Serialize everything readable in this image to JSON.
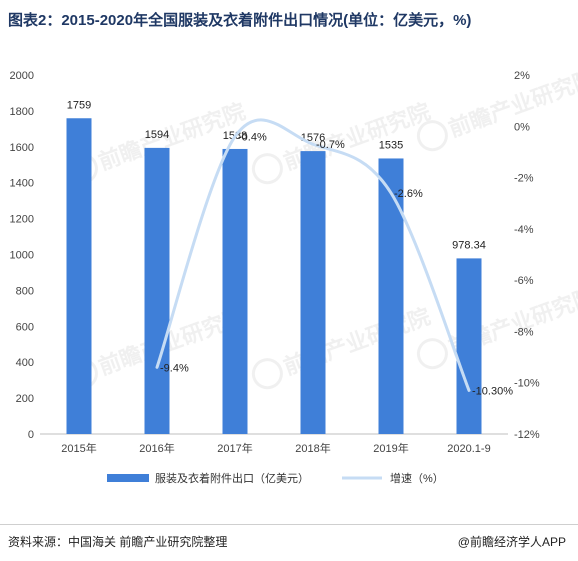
{
  "title": "图表2：2015-2020年全国服装及衣着附件出口情况(单位：亿美元，%)",
  "footer": {
    "source": "资料来源：中国海关 前瞻产业研究院整理",
    "brand": "@前瞻经济学人APP"
  },
  "watermark": "前瞻产业研究院",
  "colors": {
    "bar": "#3f7fd8",
    "line": "#c6dcf4",
    "axis": "#bfbfbf"
  },
  "chart_data": {
    "type": "bar",
    "categories": [
      "2015年",
      "2016年",
      "2017年",
      "2018年",
      "2019年",
      "2020.1-9"
    ],
    "series": [
      {
        "name": "服装及衣着附件出口（亿美元）",
        "type": "bar",
        "axis": "left",
        "values": [
          1759,
          1594,
          1588,
          1576,
          1535,
          978.34
        ],
        "labels": [
          "1759",
          "1594",
          "1588",
          "1576",
          "1535",
          "978.34"
        ]
      },
      {
        "name": "增速（%）",
        "type": "line",
        "axis": "right",
        "values": [
          null,
          -9.4,
          -0.4,
          -0.7,
          -2.6,
          -10.3
        ],
        "labels": [
          "",
          "-9.4%",
          "-0.4%",
          "-0.7%",
          "-2.6%",
          "-10.30%"
        ]
      }
    ],
    "y_left": {
      "min": 0,
      "max": 2000,
      "ticks": [
        "0",
        "200",
        "400",
        "600",
        "800",
        "1000",
        "1200",
        "1400",
        "1600",
        "1800",
        "2000"
      ]
    },
    "y_right": {
      "min": -12,
      "max": 2,
      "ticks": [
        "-12%",
        "-10%",
        "-8%",
        "-6%",
        "-4%",
        "-2%",
        "0%",
        "2%"
      ]
    },
    "legend": "bottom"
  }
}
